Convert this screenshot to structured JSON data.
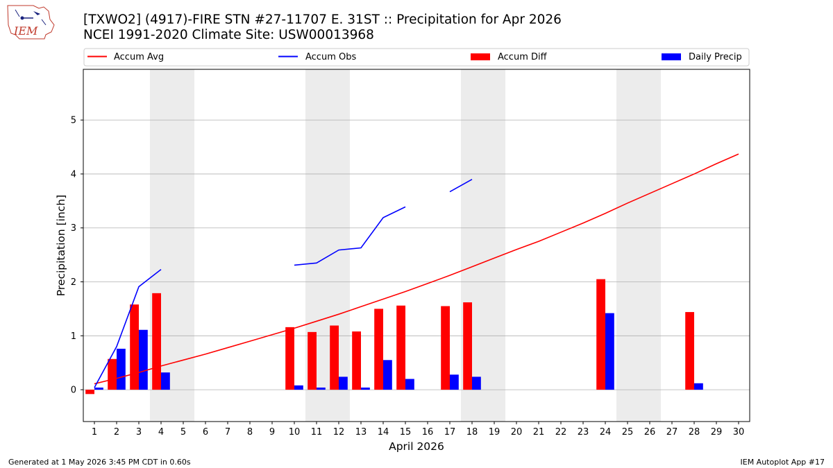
{
  "header": {
    "title_line1": "[TXWO2] (4917)-FIRE STN #27-11707 E. 31ST :: Precipitation for Apr 2026",
    "title_line2": "NCEI 1991-2020 Climate Site: USW00013968",
    "logo_text": "IEM"
  },
  "footer": {
    "generated": "Generated at 1 May 2026 3:45 PM CDT in 0.60s",
    "app": "IEM Autoplot App #17"
  },
  "colors": {
    "avg": "#ff0000",
    "obs": "#0000ff",
    "diff": "#ff0000",
    "daily": "#0000ff",
    "weekend": "#ececec",
    "grid": "#b0b0b0"
  },
  "chart_data": {
    "type": "bar",
    "xlabel": "April 2026",
    "ylabel": "Precipitation [inch]",
    "xlim": [
      0.5,
      30.5
    ],
    "ylim": [
      -0.59,
      5.94
    ],
    "x_ticks": [
      1,
      2,
      3,
      4,
      5,
      6,
      7,
      8,
      9,
      10,
      11,
      12,
      13,
      14,
      15,
      16,
      17,
      18,
      19,
      20,
      21,
      22,
      23,
      24,
      25,
      26,
      27,
      28,
      29,
      30
    ],
    "y_ticks": [
      0,
      1,
      2,
      3,
      4,
      5
    ],
    "grid": "horizontal",
    "legend_position": "top",
    "legend": [
      "Accum Avg",
      "Accum Obs",
      "Accum Diff",
      "Daily Precip"
    ],
    "weekend_spans": [
      [
        3.5,
        5.5
      ],
      [
        10.5,
        12.5
      ],
      [
        17.5,
        19.5
      ],
      [
        24.5,
        26.5
      ]
    ],
    "x": [
      1,
      2,
      3,
      4,
      5,
      6,
      7,
      8,
      9,
      10,
      11,
      12,
      13,
      14,
      15,
      16,
      17,
      18,
      19,
      20,
      21,
      22,
      23,
      24,
      25,
      26,
      27,
      28,
      29,
      30
    ],
    "series": [
      {
        "name": "Accum Avg",
        "kind": "line",
        "values": [
          0.11,
          0.21,
          0.32,
          0.44,
          0.55,
          0.66,
          0.78,
          0.9,
          1.02,
          1.14,
          1.27,
          1.4,
          1.54,
          1.68,
          1.82,
          1.97,
          2.12,
          2.28,
          2.44,
          2.6,
          2.75,
          2.92,
          3.09,
          3.27,
          3.46,
          3.64,
          3.82,
          4.0,
          4.19,
          4.37
        ]
      },
      {
        "name": "Accum Obs",
        "kind": "line",
        "values": [
          0.04,
          0.8,
          1.91,
          2.23,
          null,
          null,
          null,
          null,
          null,
          2.31,
          2.35,
          2.59,
          2.63,
          3.19,
          3.39,
          null,
          3.67,
          3.9,
          null,
          null,
          null,
          null,
          null,
          null,
          null,
          null,
          null,
          null,
          null,
          null
        ]
      },
      {
        "name": "Accum Diff",
        "kind": "bar",
        "values": [
          -0.08,
          0.57,
          1.58,
          1.79,
          null,
          null,
          null,
          null,
          null,
          1.16,
          1.07,
          1.19,
          1.08,
          1.5,
          1.56,
          null,
          1.55,
          1.62,
          null,
          null,
          null,
          null,
          null,
          2.05,
          null,
          null,
          null,
          1.44,
          null,
          null
        ]
      },
      {
        "name": "Daily Precip",
        "kind": "bar",
        "values": [
          0.04,
          0.76,
          1.11,
          0.32,
          null,
          null,
          null,
          null,
          null,
          0.08,
          0.04,
          0.24,
          0.04,
          0.55,
          0.2,
          null,
          0.28,
          0.24,
          null,
          null,
          null,
          null,
          null,
          1.42,
          null,
          null,
          null,
          0.12,
          null,
          null
        ]
      }
    ]
  }
}
